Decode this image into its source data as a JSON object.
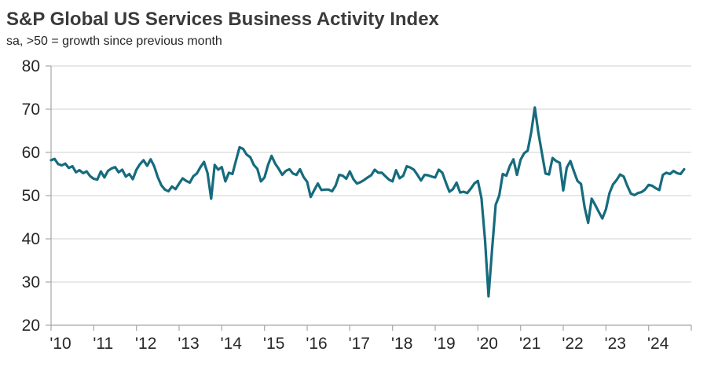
{
  "header": {
    "title": "S&P Global US Services Business Activity Index",
    "subtitle": "sa, >50 = growth since previous month"
  },
  "colors": {
    "title_text": "#3B3B3B",
    "axis_text": "#262626",
    "gridline": "#D9D9D9",
    "axis_line": "#A6A6A6",
    "series_line": "#166B7D"
  },
  "chart_data": {
    "type": "line",
    "title": "S&P Global US Services Business Activity Index",
    "subtitle": "sa, >50 = growth since previous month",
    "ylim": [
      20,
      80
    ],
    "ytick_step": 10,
    "ytick_labels": [
      "20",
      "30",
      "40",
      "50",
      "60",
      "70",
      "80"
    ],
    "grid": true,
    "legend_position": "none",
    "x_start_year": 2010,
    "x_frequency": "monthly",
    "x_tick_labels": [
      "'10",
      "'11",
      "'12",
      "'13",
      "'14",
      "'15",
      "'16",
      "'17",
      "'18",
      "'19",
      "'20",
      "'21",
      "'22",
      "'23",
      "'24"
    ],
    "series": [
      {
        "name": "US Services Business Activity Index",
        "color": "#166B7D",
        "values": [
          58.2,
          58.5,
          57.3,
          57.0,
          57.4,
          56.4,
          56.8,
          55.4,
          55.9,
          55.2,
          55.6,
          54.5,
          53.9,
          53.7,
          55.6,
          54.2,
          55.7,
          56.3,
          56.6,
          55.4,
          56.0,
          54.4,
          55.0,
          53.8,
          56.0,
          57.3,
          58.2,
          56.9,
          58.4,
          56.8,
          54.3,
          52.4,
          51.4,
          51.0,
          52.1,
          51.5,
          52.8,
          54.0,
          53.4,
          53.0,
          54.5,
          55.1,
          56.6,
          57.8,
          55.2,
          49.3,
          57.1,
          56.0,
          56.6,
          53.3,
          55.3,
          55.0,
          58.1,
          61.2,
          60.8,
          59.5,
          58.9,
          57.1,
          56.2,
          53.3,
          54.2,
          57.1,
          59.2,
          57.4,
          56.2,
          54.8,
          55.7,
          56.1,
          55.1,
          54.8,
          56.1,
          54.3,
          53.2,
          49.7,
          51.3,
          52.8,
          51.3,
          51.4,
          51.4,
          51.0,
          52.3,
          54.8,
          54.6,
          53.9,
          55.6,
          53.8,
          52.8,
          53.1,
          53.6,
          54.2,
          54.7,
          56.0,
          55.3,
          55.3,
          54.5,
          53.7,
          53.3,
          55.9,
          54.0,
          54.6,
          56.8,
          56.5,
          56.0,
          54.8,
          53.5,
          54.8,
          54.7,
          54.4,
          54.2,
          56.0,
          55.3,
          53.0,
          50.9,
          51.5,
          53.0,
          50.7,
          50.9,
          50.6,
          51.6,
          52.8,
          53.4,
          49.4,
          39.8,
          26.7,
          37.5,
          47.9,
          50.0,
          55.0,
          54.6,
          56.9,
          58.4,
          54.8,
          58.3,
          59.8,
          60.4,
          64.7,
          70.4,
          64.6,
          59.9,
          55.1,
          54.9,
          58.7,
          58.0,
          57.6,
          51.2,
          56.5,
          58.0,
          55.6,
          53.4,
          52.7,
          47.3,
          43.7,
          49.3,
          47.8,
          46.2,
          44.7,
          46.8,
          50.6,
          52.6,
          53.6,
          54.9,
          54.4,
          52.3,
          50.5,
          50.1,
          50.6,
          50.8,
          51.4,
          52.5,
          52.3,
          51.7,
          51.3,
          54.8,
          55.3,
          55.0,
          55.7,
          55.2,
          55.0,
          56.1
        ]
      }
    ]
  }
}
